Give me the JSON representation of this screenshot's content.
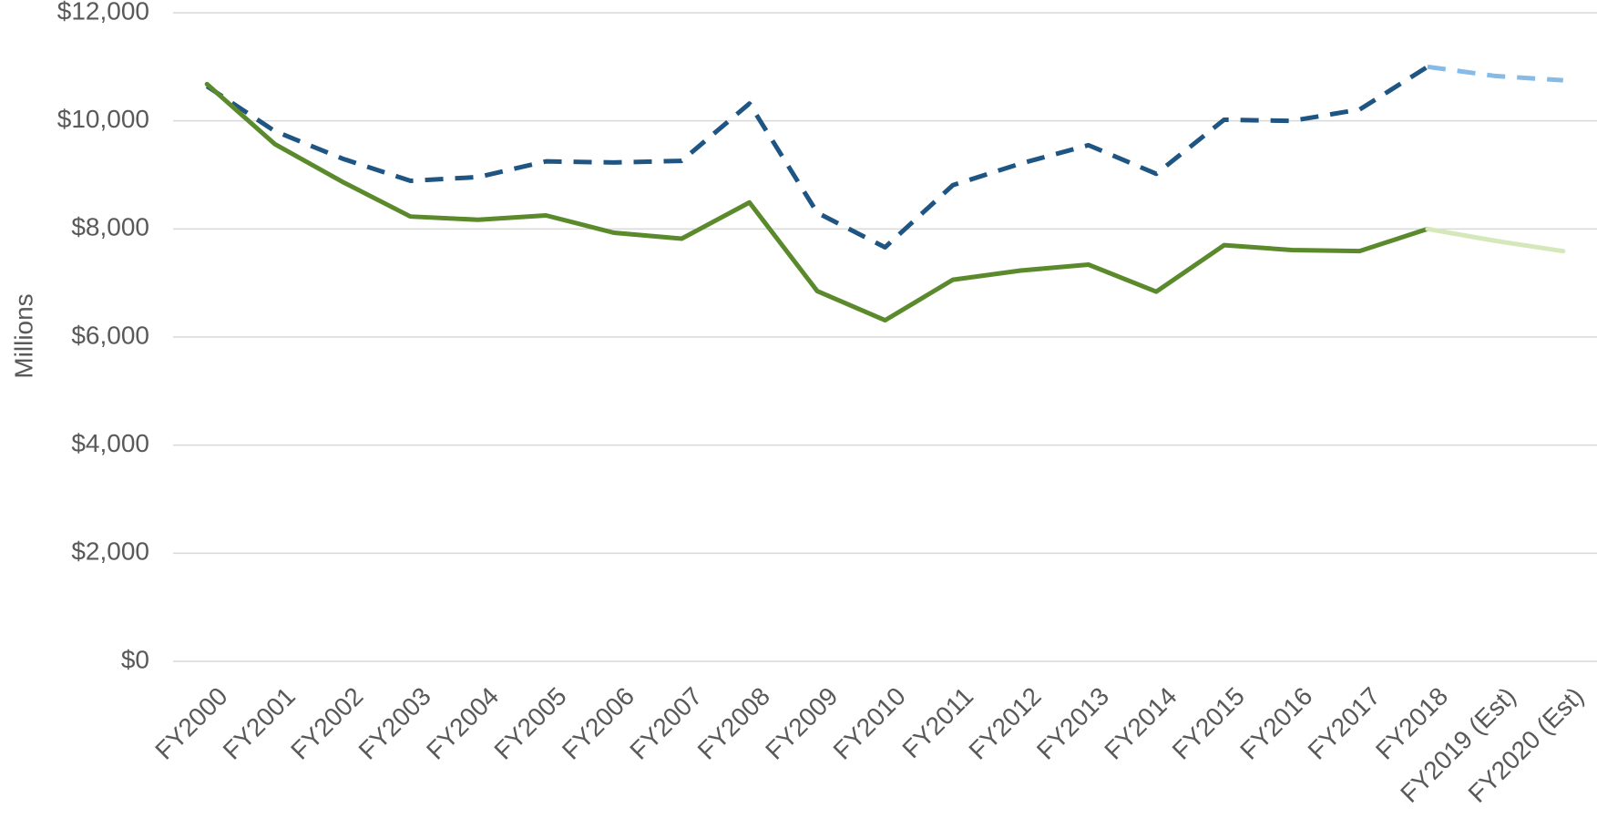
{
  "chart_data": {
    "type": "line",
    "y_label": "Millions",
    "categories": [
      "FY2000",
      "FY2001",
      "FY2002",
      "FY2003",
      "FY2004",
      "FY2005",
      "FY2006",
      "FY2007",
      "FY2008",
      "FY2009",
      "FY2010",
      "FY2011",
      "FY2012",
      "FY2013",
      "FY2014",
      "FY2015",
      "FY2016",
      "FY2017",
      "FY2018",
      "FY2019 (Est)",
      "FY2020 (Est)"
    ],
    "series": [
      {
        "color": "#1f5582",
        "dashed": true,
        "values": [
          10640,
          9810,
          9300,
          8890,
          8960,
          9250,
          9230,
          9260,
          10320,
          8300,
          7660,
          8810,
          9210,
          9550,
          9020,
          10020,
          10000,
          10210,
          11000,
          null,
          null
        ]
      },
      {
        "color": "#85bbe6",
        "dashed": true,
        "values": [
          null,
          null,
          null,
          null,
          null,
          null,
          null,
          null,
          null,
          null,
          null,
          null,
          null,
          null,
          null,
          null,
          null,
          null,
          11000,
          10830,
          10750
        ]
      },
      {
        "color": "#5b8a2d",
        "dashed": false,
        "values": [
          10680,
          9570,
          8870,
          8230,
          8170,
          8250,
          7930,
          7820,
          8490,
          6850,
          6310,
          7060,
          7230,
          7340,
          6840,
          7700,
          7610,
          7590,
          8000,
          null,
          null
        ]
      },
      {
        "color": "#d5e8b9",
        "dashed": false,
        "values": [
          null,
          null,
          null,
          null,
          null,
          null,
          null,
          null,
          null,
          null,
          null,
          null,
          null,
          null,
          null,
          null,
          null,
          null,
          8000,
          7780,
          7590
        ]
      }
    ],
    "ylim": [
      0,
      12000
    ],
    "yticks": [
      {
        "value": 0,
        "label": "$0"
      },
      {
        "value": 2000,
        "label": "$2,000"
      },
      {
        "value": 4000,
        "label": "$4,000"
      },
      {
        "value": 6000,
        "label": "$6,000"
      },
      {
        "value": 8000,
        "label": "$8,000"
      },
      {
        "value": 10000,
        "label": "$10,000"
      },
      {
        "value": 12000,
        "label": "$12,000"
      }
    ],
    "grid": true
  }
}
